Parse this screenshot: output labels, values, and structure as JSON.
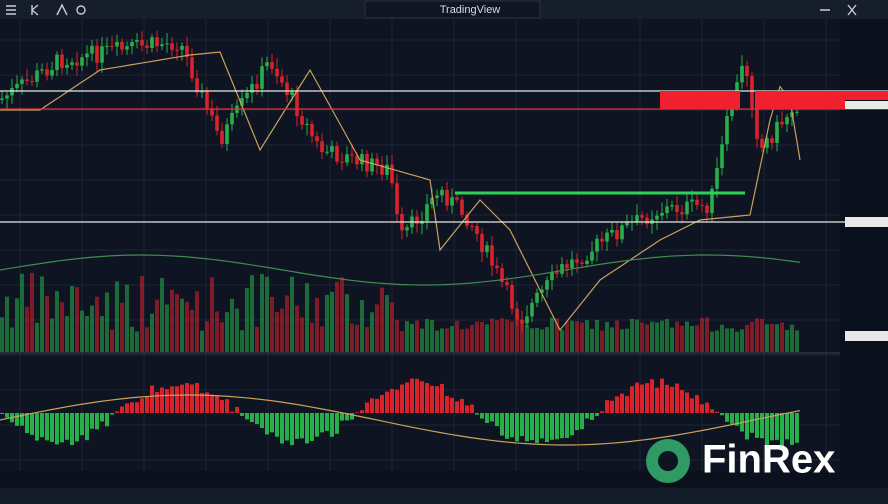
{
  "header": {
    "title": "TradingView"
  },
  "watermark": {
    "text": "FinRex"
  }
}
